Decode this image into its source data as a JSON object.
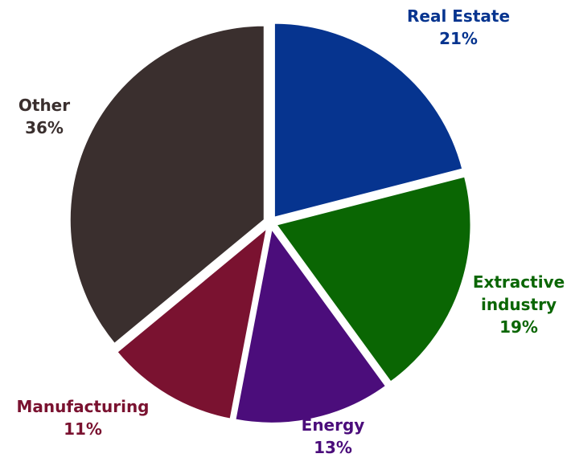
{
  "chart_data": {
    "type": "pie",
    "slices": [
      {
        "label": [
          "Real Estate"
        ],
        "value": 21,
        "value_text": "21%",
        "color": "#06348f"
      },
      {
        "label": [
          "Extractive",
          "industry"
        ],
        "value": 19,
        "value_text": "19%",
        "color": "#0a6603"
      },
      {
        "label": [
          "Energy"
        ],
        "value": 13,
        "value_text": "13%",
        "color": "#4b0d7b"
      },
      {
        "label": [
          "Manufacturing"
        ],
        "value": 11,
        "value_text": "11%",
        "color": "#7a1230"
      },
      {
        "label": [
          "Other"
        ],
        "value": 36,
        "value_text": "36%",
        "color": "#3a2f2e"
      }
    ],
    "start": "top, clockwise",
    "exploded": true,
    "legend": "none"
  }
}
